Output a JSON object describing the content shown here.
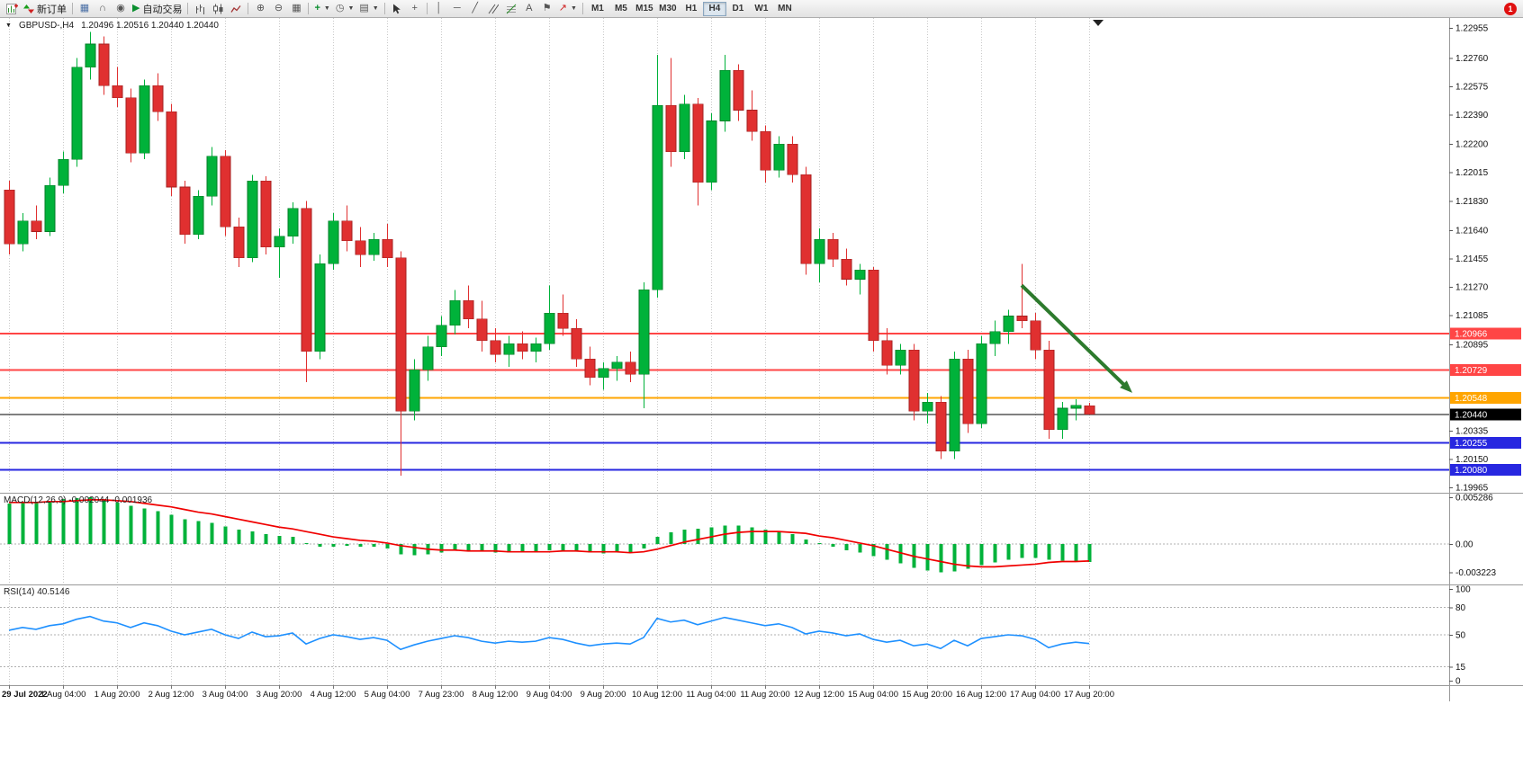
{
  "toolbar": {
    "new_order_label": "新订单",
    "autotrade_label": "自动交易",
    "text_tool_label": "A",
    "timeframes": [
      "M1",
      "M5",
      "M15",
      "M30",
      "H1",
      "H4",
      "D1",
      "W1",
      "MN"
    ],
    "active_timeframe": "H4",
    "notification_count": "1"
  },
  "header": {
    "symbol_period": "GBPUSD-,H4",
    "ohlc": "1.20496 1.20516 1.20440 1.20440"
  },
  "colors": {
    "up": "#00b23a",
    "up_border": "#007d27",
    "down": "#e03030",
    "down_border": "#a51f1f",
    "grid": "#c9c9c9",
    "border": "#999999",
    "macd_bar": "#00b23a",
    "macd_signal": "#f00000",
    "rsi_line": "#1e90ff",
    "axis_text": "#111111"
  },
  "annotations": {
    "arrow": {
      "from_index": 75,
      "from_price": 1.2128,
      "to_index": 83.2,
      "to_price": 1.2058,
      "color": "#2d7a2d",
      "width": 4
    }
  },
  "chart_data": [
    {
      "type": "candlestick",
      "title": "GBPUSD-,H4",
      "ylim": [
        1.1993,
        1.2302
      ],
      "yticks": [
        "1.22955",
        "1.22760",
        "1.22575",
        "1.22390",
        "1.22200",
        "1.22015",
        "1.21830",
        "1.21640",
        "1.21455",
        "1.21270",
        "1.21085",
        "1.20895",
        "1.20335",
        "1.20150",
        "1.19965"
      ],
      "current": {
        "open": "1.20496",
        "high": "1.20516",
        "low": "1.20440",
        "close": "1.20440"
      },
      "hlines": [
        {
          "price": 1.20966,
          "label": "1.20966",
          "color": "#ff4545",
          "lw": 2
        },
        {
          "price": 1.20729,
          "label": "1.20729",
          "color": "#ff4545",
          "lw": 2
        },
        {
          "price": 1.20548,
          "label": "1.20548",
          "color": "#ffa500",
          "lw": 2
        },
        {
          "price": 1.2044,
          "label": "1.20440",
          "color": "#000000",
          "lw": 1
        },
        {
          "price": 1.20255,
          "label": "1.20255",
          "color": "#2727e0",
          "lw": 2
        },
        {
          "price": 1.2008,
          "label": "1.20080",
          "color": "#2727e0",
          "lw": 2
        }
      ],
      "time_labels": [
        {
          "i": 0,
          "t": "29 Jul 2022"
        },
        {
          "i": 4,
          "t": "1 Aug 04:00"
        },
        {
          "i": 8,
          "t": "1 Aug 20:00"
        },
        {
          "i": 12,
          "t": "2 Aug 12:00"
        },
        {
          "i": 16,
          "t": "3 Aug 04:00"
        },
        {
          "i": 20,
          "t": "3 Aug 20:00"
        },
        {
          "i": 24,
          "t": "4 Aug 12:00"
        },
        {
          "i": 28,
          "t": "5 Aug 04:00"
        },
        {
          "i": 32,
          "t": "7 Aug 23:00"
        },
        {
          "i": 36,
          "t": "8 Aug 12:00"
        },
        {
          "i": 40,
          "t": "9 Aug 04:00"
        },
        {
          "i": 44,
          "t": "9 Aug 20:00"
        },
        {
          "i": 48,
          "t": "10 Aug 12:00"
        },
        {
          "i": 52,
          "t": "11 Aug 04:00"
        },
        {
          "i": 56,
          "t": "11 Aug 20:00"
        },
        {
          "i": 60,
          "t": "12 Aug 12:00"
        },
        {
          "i": 64,
          "t": "15 Aug 04:00"
        },
        {
          "i": 68,
          "t": "15 Aug 20:00"
        },
        {
          "i": 72,
          "t": "16 Aug 12:00"
        },
        {
          "i": 76,
          "t": "17 Aug 04:00"
        },
        {
          "i": 80,
          "t": "17 Aug 20:00"
        }
      ],
      "ohlc": [
        [
          1.219,
          1.2196,
          1.2148,
          1.2155
        ],
        [
          1.2155,
          1.2175,
          1.215,
          1.217
        ],
        [
          1.217,
          1.218,
          1.2158,
          1.2163
        ],
        [
          1.2163,
          1.2198,
          1.216,
          1.2193
        ],
        [
          1.2193,
          1.2215,
          1.2188,
          1.221
        ],
        [
          1.221,
          1.2276,
          1.2205,
          1.227
        ],
        [
          1.227,
          1.2293,
          1.2262,
          1.2285
        ],
        [
          1.2285,
          1.229,
          1.2252,
          1.2258
        ],
        [
          1.2258,
          1.227,
          1.2244,
          1.225
        ],
        [
          1.225,
          1.2256,
          1.2208,
          1.2214
        ],
        [
          1.2214,
          1.2262,
          1.221,
          1.2258
        ],
        [
          1.2258,
          1.2266,
          1.2235,
          1.2241
        ],
        [
          1.2241,
          1.2246,
          1.2186,
          1.2192
        ],
        [
          1.2192,
          1.2196,
          1.2155,
          1.2161
        ],
        [
          1.2161,
          1.219,
          1.2158,
          1.2186
        ],
        [
          1.2186,
          1.2218,
          1.218,
          1.2212
        ],
        [
          1.2212,
          1.2216,
          1.216,
          1.2166
        ],
        [
          1.2166,
          1.2172,
          1.214,
          1.2146
        ],
        [
          1.2146,
          1.22,
          1.2143,
          1.2196
        ],
        [
          1.2196,
          1.2199,
          1.2148,
          1.2153
        ],
        [
          1.2153,
          1.2165,
          1.2133,
          1.216
        ],
        [
          1.216,
          1.2182,
          1.2155,
          1.2178
        ],
        [
          1.2178,
          1.2183,
          1.2065,
          1.2085
        ],
        [
          1.2085,
          1.2148,
          1.208,
          1.2142
        ],
        [
          1.2142,
          1.2175,
          1.2138,
          1.217
        ],
        [
          1.217,
          1.218,
          1.215,
          1.2157
        ],
        [
          1.2157,
          1.2166,
          1.214,
          1.2148
        ],
        [
          1.2148,
          1.2162,
          1.2144,
          1.2158
        ],
        [
          1.2158,
          1.2168,
          1.214,
          1.2146
        ],
        [
          1.2146,
          1.215,
          1.2004,
          1.2046
        ],
        [
          1.2046,
          1.208,
          1.204,
          1.2073
        ],
        [
          1.2073,
          1.2095,
          1.2066,
          1.2088
        ],
        [
          1.2088,
          1.2108,
          1.2082,
          1.2102
        ],
        [
          1.2102,
          1.2125,
          1.2096,
          1.2118
        ],
        [
          1.2118,
          1.2128,
          1.21,
          1.2106
        ],
        [
          1.2106,
          1.2118,
          1.2085,
          1.2092
        ],
        [
          1.2092,
          1.21,
          1.2078,
          1.2083
        ],
        [
          1.2083,
          1.2095,
          1.2075,
          1.209
        ],
        [
          1.209,
          1.2098,
          1.208,
          1.2085
        ],
        [
          1.2085,
          1.2094,
          1.2078,
          1.209
        ],
        [
          1.209,
          1.2128,
          1.2086,
          1.211
        ],
        [
          1.211,
          1.2122,
          1.2095,
          1.21
        ],
        [
          1.21,
          1.2106,
          1.2075,
          1.208
        ],
        [
          1.208,
          1.2088,
          1.2063,
          1.2068
        ],
        [
          1.2068,
          1.2078,
          1.206,
          1.2074
        ],
        [
          1.2074,
          1.2082,
          1.2066,
          1.2078
        ],
        [
          1.2078,
          1.2085,
          1.2065,
          1.207
        ],
        [
          1.207,
          1.213,
          1.2048,
          1.2125
        ],
        [
          1.2125,
          1.2278,
          1.212,
          1.2245
        ],
        [
          1.2245,
          1.2276,
          1.2205,
          1.2215
        ],
        [
          1.2215,
          1.2252,
          1.221,
          1.2246
        ],
        [
          1.2246,
          1.225,
          1.218,
          1.2195
        ],
        [
          1.2195,
          1.224,
          1.219,
          1.2235
        ],
        [
          1.2235,
          1.2278,
          1.2228,
          1.2268
        ],
        [
          1.2268,
          1.2272,
          1.2235,
          1.2242
        ],
        [
          1.2242,
          1.2255,
          1.2222,
          1.2228
        ],
        [
          1.2228,
          1.2232,
          1.2195,
          1.2203
        ],
        [
          1.2203,
          1.2225,
          1.2198,
          1.222
        ],
        [
          1.222,
          1.2225,
          1.2195,
          1.22
        ],
        [
          1.22,
          1.2205,
          1.2135,
          1.2142
        ],
        [
          1.2142,
          1.2165,
          1.213,
          1.2158
        ],
        [
          1.2158,
          1.2162,
          1.214,
          1.2145
        ],
        [
          1.2145,
          1.2152,
          1.2128,
          1.2132
        ],
        [
          1.2132,
          1.2142,
          1.2122,
          1.2138
        ],
        [
          1.2138,
          1.214,
          1.2085,
          1.2092
        ],
        [
          1.2092,
          1.21,
          1.207,
          1.2076
        ],
        [
          1.2076,
          1.209,
          1.207,
          1.2086
        ],
        [
          1.2086,
          1.209,
          1.204,
          1.2046
        ],
        [
          1.2046,
          1.2058,
          1.2038,
          1.2052
        ],
        [
          1.2052,
          1.2056,
          1.2015,
          1.202
        ],
        [
          1.202,
          1.2085,
          1.2015,
          1.208
        ],
        [
          1.208,
          1.2086,
          1.2032,
          1.2038
        ],
        [
          1.2038,
          1.2095,
          1.2035,
          1.209
        ],
        [
          1.209,
          1.2105,
          1.2082,
          1.2098
        ],
        [
          1.2098,
          1.2112,
          1.209,
          1.2108
        ],
        [
          1.2108,
          1.2142,
          1.21,
          1.2105
        ],
        [
          1.2105,
          1.211,
          1.208,
          1.2086
        ],
        [
          1.2086,
          1.2092,
          1.2028,
          1.2034
        ],
        [
          1.2034,
          1.2052,
          1.2028,
          1.2048
        ],
        [
          1.2048,
          1.2054,
          1.204,
          1.205
        ],
        [
          1.20496,
          1.20516,
          1.2044,
          1.2044
        ]
      ]
    },
    {
      "type": "bar",
      "name": "MACD(12,26,9)",
      "current_text": "-0.002044 -0.001936",
      "ylim": [
        -0.0046,
        0.0058
      ],
      "axis": [
        {
          "v": 0.005286,
          "t": "0.005286"
        },
        {
          "v": 0,
          "t": "0.00"
        },
        {
          "v": -0.003223,
          "t": "-0.003223"
        }
      ],
      "histogram": [
        0.0046,
        0.0048,
        0.0047,
        0.0049,
        0.0051,
        0.0052,
        0.00528,
        0.005,
        0.0047,
        0.0043,
        0.004,
        0.0037,
        0.0033,
        0.0028,
        0.0026,
        0.0024,
        0.002,
        0.0016,
        0.0014,
        0.0011,
        0.0009,
        0.0008,
        0.0001,
        -0.0003,
        -0.0003,
        -0.0002,
        -0.0003,
        -0.0003,
        -0.0005,
        -0.0012,
        -0.0013,
        -0.0012,
        -0.001,
        -0.0008,
        -0.0008,
        -0.0009,
        -0.001,
        -0.001,
        -0.001,
        -0.0009,
        -0.0007,
        -0.0007,
        -0.0008,
        -0.001,
        -0.0011,
        -0.001,
        -0.001,
        -0.0005,
        0.0008,
        0.0013,
        0.0016,
        0.0017,
        0.0019,
        0.0021,
        0.0021,
        0.0019,
        0.0016,
        0.0014,
        0.0011,
        0.0005,
        0.0001,
        -0.0003,
        -0.0007,
        -0.001,
        -0.0014,
        -0.0018,
        -0.0022,
        -0.0027,
        -0.003,
        -0.0032,
        -0.0031,
        -0.0028,
        -0.0024,
        -0.0021,
        -0.0018,
        -0.0016,
        -0.0016,
        -0.0018,
        -0.0019,
        -0.002,
        -0.002044
      ],
      "signal": [
        0.0047,
        0.0047,
        0.0047,
        0.0048,
        0.0048,
        0.0049,
        0.005,
        0.005,
        0.0049,
        0.0048,
        0.0046,
        0.0044,
        0.0042,
        0.0039,
        0.0036,
        0.0034,
        0.0031,
        0.0028,
        0.0025,
        0.0022,
        0.0019,
        0.0017,
        0.0014,
        0.0011,
        0.0008,
        0.0006,
        0.0004,
        0.0003,
        0.0001,
        -0.0002,
        -0.0004,
        -0.0006,
        -0.0007,
        -0.0007,
        -0.0008,
        -0.0008,
        -0.0008,
        -0.0009,
        -0.0009,
        -0.0009,
        -0.0009,
        -0.0008,
        -0.0008,
        -0.0009,
        -0.0009,
        -0.0009,
        -0.001,
        -0.0009,
        -0.0006,
        -0.0002,
        0.0002,
        0.0005,
        0.0008,
        0.0011,
        0.0013,
        0.0014,
        0.0014,
        0.0014,
        0.0013,
        0.0012,
        0.0009,
        0.0007,
        0.0004,
        0.0001,
        -0.0002,
        -0.0006,
        -0.001,
        -0.0014,
        -0.0017,
        -0.002,
        -0.0023,
        -0.0025,
        -0.0026,
        -0.0026,
        -0.0025,
        -0.0024,
        -0.0023,
        -0.0021,
        -0.002,
        -0.002,
        -0.001936
      ]
    },
    {
      "type": "line",
      "name": "RSI(14)",
      "current_text": "40.5146",
      "ylim": [
        -5,
        105
      ],
      "levels": [
        80,
        50,
        15
      ],
      "axis": [
        {
          "v": 100,
          "t": "100"
        },
        {
          "v": 80,
          "t": "80"
        },
        {
          "v": 50,
          "t": "50"
        },
        {
          "v": 15,
          "t": "15"
        },
        {
          "v": 0,
          "t": "0"
        }
      ],
      "values": [
        55,
        58,
        56,
        60,
        62,
        67,
        70,
        65,
        63,
        58,
        63,
        60,
        54,
        50,
        53,
        56,
        50,
        46,
        53,
        48,
        49,
        52,
        40,
        46,
        50,
        48,
        45,
        47,
        44,
        34,
        39,
        43,
        46,
        49,
        47,
        43,
        41,
        43,
        42,
        43,
        47,
        45,
        41,
        38,
        40,
        41,
        40,
        47,
        68,
        64,
        66,
        61,
        65,
        69,
        66,
        63,
        60,
        62,
        58,
        51,
        54,
        52,
        49,
        51,
        45,
        42,
        44,
        38,
        40,
        35,
        44,
        38,
        46,
        48,
        50,
        49,
        45,
        36,
        40,
        42,
        40.5146
      ]
    }
  ]
}
